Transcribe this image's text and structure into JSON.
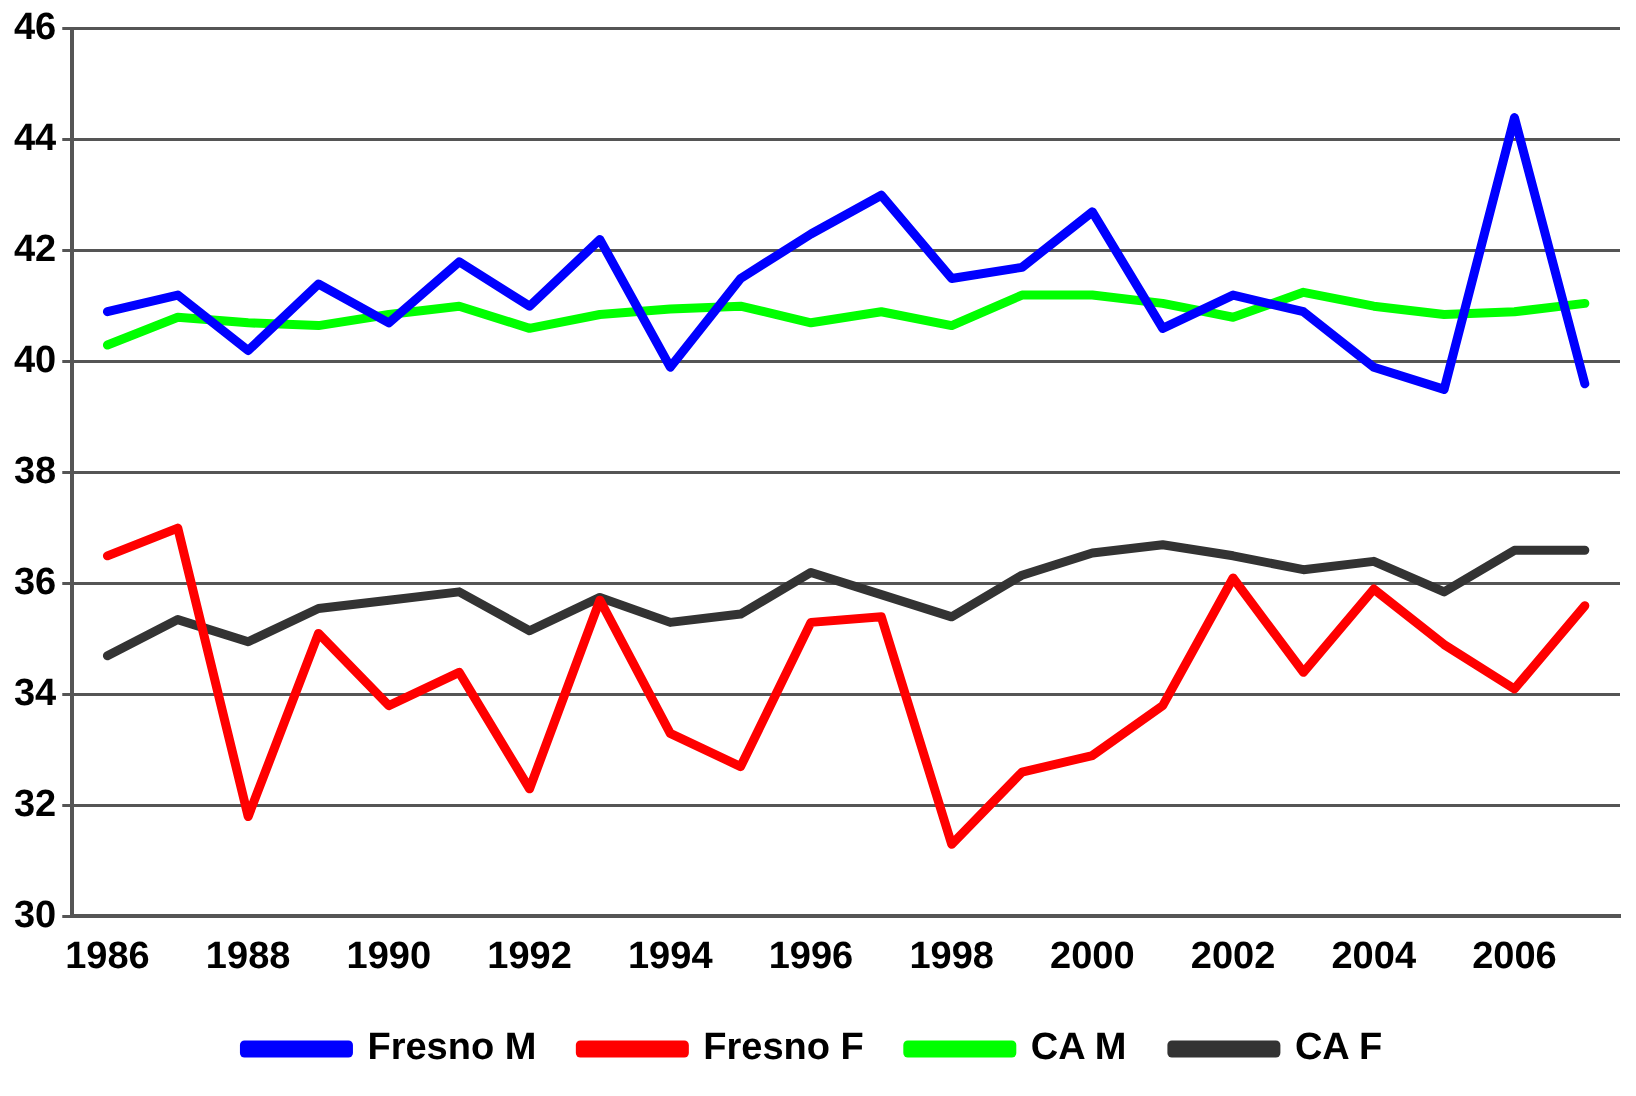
{
  "chart_data": {
    "type": "line",
    "categories": [
      "1986",
      null,
      "1988",
      null,
      "1990",
      null,
      "1992",
      null,
      "1994",
      null,
      "1996",
      null,
      "1998",
      null,
      "2000",
      null,
      "2002",
      null,
      "2004",
      null,
      "2006",
      null
    ],
    "series": [
      {
        "name": "Fresno M",
        "color": "#0000ff",
        "values": [
          40.9,
          41.2,
          40.2,
          41.4,
          40.7,
          41.8,
          41.0,
          42.2,
          39.9,
          41.5,
          42.3,
          43.0,
          41.5,
          41.7,
          42.7,
          40.6,
          41.2,
          40.9,
          39.9,
          39.5,
          44.4,
          39.6
        ]
      },
      {
        "name": "Fresno F",
        "color": "#ff0000",
        "values": [
          36.5,
          37.0,
          31.8,
          35.1,
          33.8,
          34.4,
          32.3,
          35.7,
          33.3,
          32.7,
          35.3,
          35.4,
          31.3,
          32.6,
          32.9,
          33.8,
          36.1,
          34.4,
          35.9,
          34.9,
          34.1,
          35.6
        ]
      },
      {
        "name": "CA M",
        "color": "#00ff00",
        "values": [
          40.3,
          40.8,
          40.7,
          40.65,
          40.85,
          41.0,
          40.6,
          40.85,
          40.95,
          41.0,
          40.7,
          40.9,
          40.65,
          41.2,
          41.2,
          41.05,
          40.8,
          41.25,
          41.0,
          40.85,
          40.9,
          41.05
        ]
      },
      {
        "name": "CA F",
        "color": "#333333",
        "values": [
          34.7,
          35.35,
          34.95,
          35.55,
          35.7,
          35.85,
          35.15,
          35.75,
          35.3,
          35.45,
          36.2,
          35.8,
          35.4,
          36.15,
          36.55,
          36.7,
          36.5,
          36.25,
          36.4,
          35.85,
          36.6,
          36.6
        ]
      }
    ],
    "ylim": [
      30,
      46
    ],
    "yticks": [
      30,
      32,
      34,
      36,
      38,
      40,
      42,
      44,
      46
    ],
    "grid": "y",
    "legend": "bottom",
    "marker": "none",
    "line_style": "solid"
  }
}
